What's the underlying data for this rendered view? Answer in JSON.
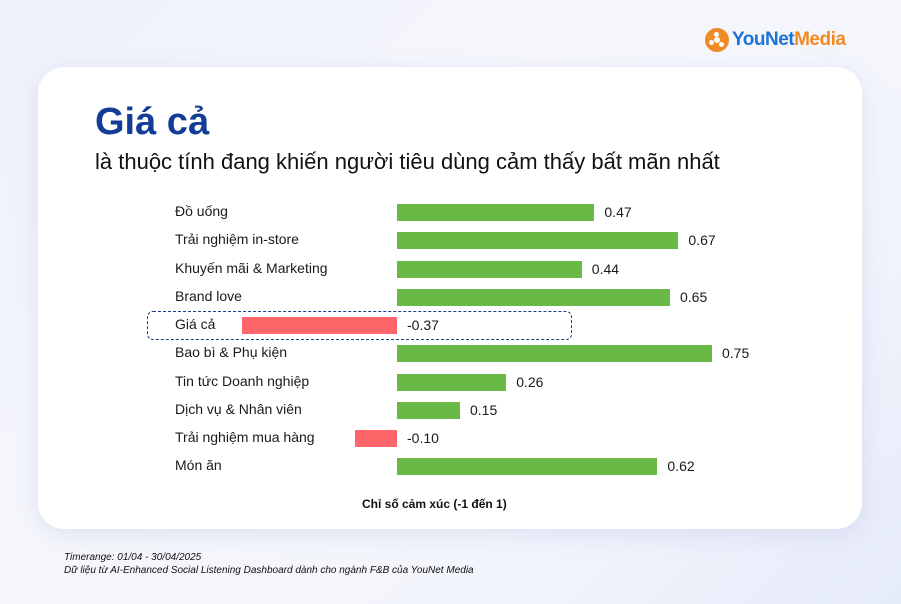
{
  "logo": {
    "brand_part1": "YouNet",
    "brand_part2": "Media",
    "icon": "younet-logo-icon"
  },
  "header": {
    "title": "Giá cả",
    "subtitle": "là thuộc tính đang khiến người tiêu dùng cảm thấy bất mãn nhất"
  },
  "colors": {
    "positive": "#6ab846",
    "negative": "#fe6669",
    "title": "#123c96",
    "brand_blue": "#1e74d6",
    "brand_orange": "#f08a24"
  },
  "chart_data": {
    "type": "bar",
    "orientation": "horizontal",
    "title": "Giá cả là thuộc tính đang khiến người tiêu dùng cảm thấy bất mãn nhất",
    "xlabel": "Chỉ số cảm xúc (-1 đến 1)",
    "ylabel": "",
    "xlim": [
      -1,
      1
    ],
    "grid": false,
    "highlight": "Giá cả",
    "categories": [
      "Đồ uống",
      "Trải nghiệm in-store",
      "Khuyến mãi & Marketing",
      "Brand love",
      "Giá cả",
      "Bao bì & Phụ kiện",
      "Tin tức Doanh nghiệp",
      "Dịch vụ & Nhân viên",
      "Trải nghiệm mua hàng",
      "Món ăn"
    ],
    "values": [
      0.47,
      0.67,
      0.44,
      0.65,
      -0.37,
      0.75,
      0.26,
      0.15,
      -0.1,
      0.62
    ],
    "value_labels": [
      "0.47",
      "0.67",
      "0.44",
      "0.65",
      "-0.37",
      "0.75",
      "0.26",
      "0.15",
      "-0.10",
      "0.62"
    ]
  },
  "footer": {
    "timerange": "Timerange: 01/04 - 30/04/2025",
    "source": "Dữ liệu từ AI-Enhanced Social Listening Dashboard dành cho ngành F&B của YouNet Media"
  }
}
